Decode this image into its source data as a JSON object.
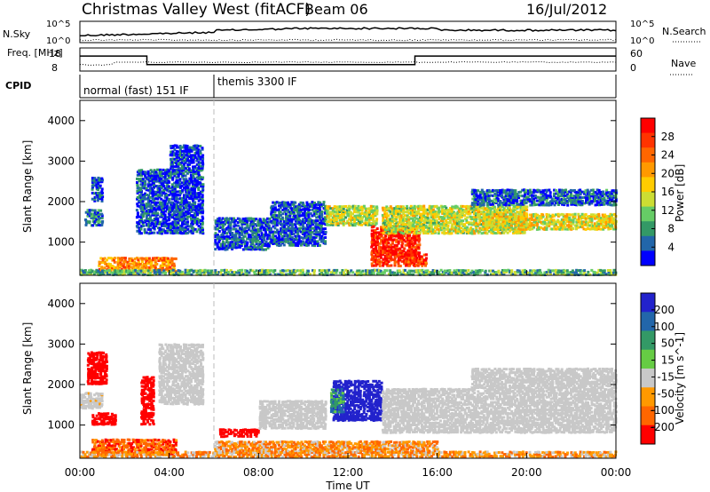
{
  "header": {
    "title": "Christmas Valley West (fitACF)",
    "beam": "Beam 06",
    "date": "16/Jul/2012"
  },
  "chart_data": [
    {
      "type": "line",
      "panel": "noise",
      "left_label": "N.Sky",
      "right_label": "N.Search",
      "left_ticks": [
        "10^5",
        "10^0"
      ],
      "right_ticks": [
        "10^5",
        "10^0"
      ]
    },
    {
      "type": "line",
      "panel": "frequency",
      "left_label": "Freq. [MHz]",
      "right_label": "Nave",
      "left_ticks": [
        "18",
        "8"
      ],
      "right_ticks": [
        "60",
        "0"
      ],
      "freq_segments": [
        {
          "start": "00:00",
          "end": "03:00",
          "freq": 14.5
        },
        {
          "start": "03:00",
          "end": "15:00",
          "freq": 10.8
        },
        {
          "start": "15:00",
          "end": "24:00",
          "freq": 14.5
        }
      ]
    },
    {
      "type": "table",
      "panel": "cpid",
      "label": "CPID",
      "segments": [
        {
          "start": "00:00",
          "end": "06:00",
          "name": "normal (fast) 151 IF"
        },
        {
          "start": "06:00",
          "end": "24:00",
          "name": "themis 3300 IF"
        }
      ]
    },
    {
      "type": "heatmap",
      "panel": "power",
      "ylabel": "Slant Range [km]",
      "yticks": [
        1000,
        2000,
        3000,
        4000
      ],
      "ylim": [
        180,
        4500
      ],
      "xlim": [
        "00:00",
        "24:00"
      ],
      "colorbar_label": "Power [dB]",
      "colorbar_ticks": [
        "28",
        "24",
        "20",
        "16",
        "12",
        "8",
        "4"
      ],
      "colorbar_colors": [
        "#ff0000",
        "#ff3300",
        "#ff6600",
        "#ff9900",
        "#ffcc00",
        "#ccdd33",
        "#66cc66",
        "#339966",
        "#2266aa",
        "#0000ff"
      ],
      "regions": [
        {
          "t0": 0.1,
          "t1": 0.8,
          "r0": 200,
          "r1": 300,
          "level": 0.35
        },
        {
          "t0": 0.2,
          "t1": 1.0,
          "r0": 1400,
          "r1": 1800,
          "level": 0.2
        },
        {
          "t0": 0.5,
          "t1": 1.0,
          "r0": 2000,
          "r1": 2600,
          "level": 0.1
        },
        {
          "t0": 0.8,
          "t1": 4.3,
          "r0": 260,
          "r1": 620,
          "level": 0.7
        },
        {
          "t0": 2.5,
          "t1": 5.5,
          "r0": 1200,
          "r1": 2800,
          "level": 0.1
        },
        {
          "t0": 4.0,
          "t1": 5.5,
          "r0": 2800,
          "r1": 3400,
          "level": 0.1
        },
        {
          "t0": 6.0,
          "t1": 8.5,
          "r0": 800,
          "r1": 1600,
          "level": 0.12
        },
        {
          "t0": 8.5,
          "t1": 11.0,
          "r0": 900,
          "r1": 2000,
          "level": 0.12
        },
        {
          "t0": 11.0,
          "t1": 13.3,
          "r0": 1400,
          "r1": 1900,
          "level": 0.45
        },
        {
          "t0": 13.0,
          "t1": 15.2,
          "r0": 400,
          "r1": 1400,
          "level": 0.9
        },
        {
          "t0": 14.5,
          "t1": 15.5,
          "r0": 400,
          "r1": 700,
          "level": 0.85
        },
        {
          "t0": 13.5,
          "t1": 20.0,
          "r0": 1200,
          "r1": 1900,
          "level": 0.45
        },
        {
          "t0": 18.0,
          "t1": 24.0,
          "r0": 1300,
          "r1": 1700,
          "level": 0.5
        },
        {
          "t0": 17.5,
          "t1": 24.0,
          "r0": 1900,
          "r1": 2300,
          "level": 0.15
        },
        {
          "t0": 0.0,
          "t1": 24.0,
          "r0": 180,
          "r1": 320,
          "level": 0.3
        }
      ]
    },
    {
      "type": "heatmap",
      "panel": "velocity",
      "ylabel": "Slant Range [km]",
      "yticks": [
        1000,
        2000,
        3000,
        4000
      ],
      "ylim": [
        180,
        4500
      ],
      "xlim": [
        "00:00",
        "24:00"
      ],
      "xticks": [
        "00:00",
        "04:00",
        "08:00",
        "12:00",
        "16:00",
        "20:00",
        "00:00"
      ],
      "xlabel": "Time UT",
      "colorbar_label": "Velocity [m s^-1]",
      "colorbar_ticks": [
        "200",
        "100",
        "50",
        "15",
        "-15",
        "-50",
        "-100",
        "-200"
      ],
      "colorbar_colors": [
        "#2222cc",
        "#2266aa",
        "#339966",
        "#66cc44",
        "#c8c8c8",
        "#ff9900",
        "#ff6600",
        "#ff0000"
      ],
      "regions": [
        {
          "t0": 0.0,
          "t1": 1.0,
          "r0": 1400,
          "r1": 1800,
          "vel": -5
        },
        {
          "t0": 0.3,
          "t1": 1.2,
          "r0": 2000,
          "r1": 2800,
          "vel": -220
        },
        {
          "t0": 0.5,
          "t1": 1.6,
          "r0": 1000,
          "r1": 1300,
          "vel": -220
        },
        {
          "t0": 0.5,
          "t1": 4.3,
          "r0": 250,
          "r1": 650,
          "vel": -80
        },
        {
          "t0": 2.7,
          "t1": 3.3,
          "r0": 1000,
          "r1": 2200,
          "vel": -220
        },
        {
          "t0": 3.5,
          "t1": 5.5,
          "r0": 1500,
          "r1": 3000,
          "vel": 0
        },
        {
          "t0": 6.2,
          "t1": 8.0,
          "r0": 700,
          "r1": 900,
          "vel": -220
        },
        {
          "t0": 8.0,
          "t1": 11.0,
          "r0": 900,
          "r1": 1600,
          "vel": 0
        },
        {
          "t0": 11.3,
          "t1": 13.5,
          "r0": 1100,
          "r1": 2100,
          "vel": 220
        },
        {
          "t0": 11.2,
          "t1": 11.8,
          "r0": 1300,
          "r1": 1900,
          "vel": 60
        },
        {
          "t0": 13.5,
          "t1": 24.0,
          "r0": 800,
          "r1": 1900,
          "vel": 0
        },
        {
          "t0": 17.5,
          "t1": 24.0,
          "r0": 1900,
          "r1": 2400,
          "vel": 0
        },
        {
          "t0": 0.0,
          "t1": 24.0,
          "r0": 200,
          "r1": 350,
          "vel": -40
        },
        {
          "t0": 6.0,
          "t1": 16.0,
          "r0": 300,
          "r1": 600,
          "vel": -40
        }
      ]
    }
  ]
}
